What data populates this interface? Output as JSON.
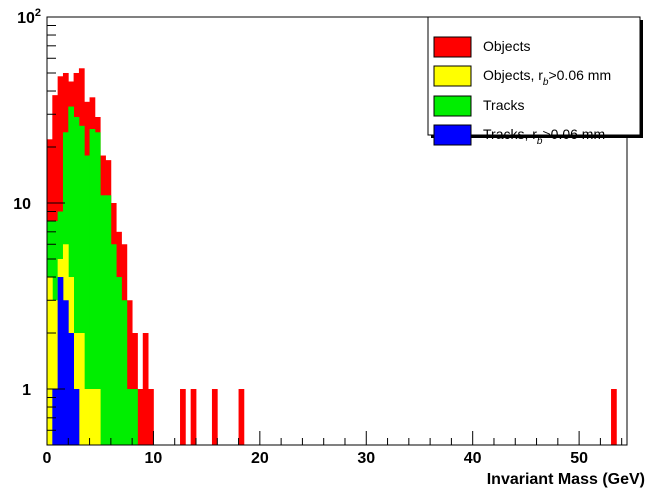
{
  "chart_data": {
    "type": "bar",
    "subtype": "stacked-overlay-histogram",
    "xlabel": "Invariant Mass (GeV)",
    "ylabel": "",
    "xlim": [
      0,
      54.5
    ],
    "ylim": [
      0.5,
      100
    ],
    "yscale": "log",
    "bin_width": 0.5,
    "x_ticks": [
      "0",
      "10",
      "20",
      "30",
      "40",
      "50"
    ],
    "y_ticks": [
      "1",
      "10",
      "10^2"
    ],
    "legend_position": "top-right",
    "series": [
      {
        "name": "Objects",
        "color": "#ff0000",
        "x": [
          0,
          0.5,
          1,
          1.5,
          2,
          2.5,
          3,
          3.5,
          4,
          4.5,
          5,
          5.5,
          6,
          6.5,
          7,
          7.5,
          8,
          8.5,
          9,
          9.5,
          12.5,
          13.5,
          15.5,
          18,
          53
        ],
        "values": [
          22,
          38,
          48,
          50,
          45,
          50,
          53,
          35,
          37,
          29,
          18,
          17,
          10,
          7,
          6,
          3,
          2,
          1,
          2,
          1,
          1,
          1,
          1,
          1,
          1
        ]
      },
      {
        "name": "Tracks",
        "color": "#00ee00",
        "x": [
          0,
          0.5,
          1,
          1.5,
          2,
          2.5,
          3,
          3.5,
          4,
          4.5,
          5,
          5.5,
          6,
          6.5,
          7,
          7.5,
          8
        ],
        "values": [
          8,
          8,
          9,
          24,
          33,
          29,
          26,
          18,
          25,
          24,
          11,
          11,
          6,
          4,
          3,
          1,
          1
        ]
      },
      {
        "name": "Objects, r_b>0.06 mm",
        "color": "#ffff00",
        "x": [
          0,
          0.5,
          1,
          1.5,
          2,
          2.5,
          3,
          3.5,
          4,
          4.5
        ],
        "values": [
          4,
          3,
          5,
          6,
          4,
          2,
          2,
          1,
          1,
          1
        ]
      },
      {
        "name": "Tracks, r_b>0.06 mm",
        "color": "#0000ff",
        "x": [
          0.5,
          1,
          1.5,
          2,
          2.5
        ],
        "values": [
          1,
          4,
          3,
          2,
          1
        ]
      }
    ],
    "legend": [
      {
        "text": "Objects",
        "sub": "",
        "tail": "",
        "color": "#ff0000"
      },
      {
        "text": "Objects, r",
        "sub": "b",
        "tail": ">0.06 mm",
        "color": "#ffff00"
      },
      {
        "text": "Tracks",
        "sub": "",
        "tail": "",
        "color": "#00ee00"
      },
      {
        "text": "Tracks, r",
        "sub": "b",
        "tail": ">0.06 mm",
        "color": "#0000ff"
      }
    ]
  }
}
